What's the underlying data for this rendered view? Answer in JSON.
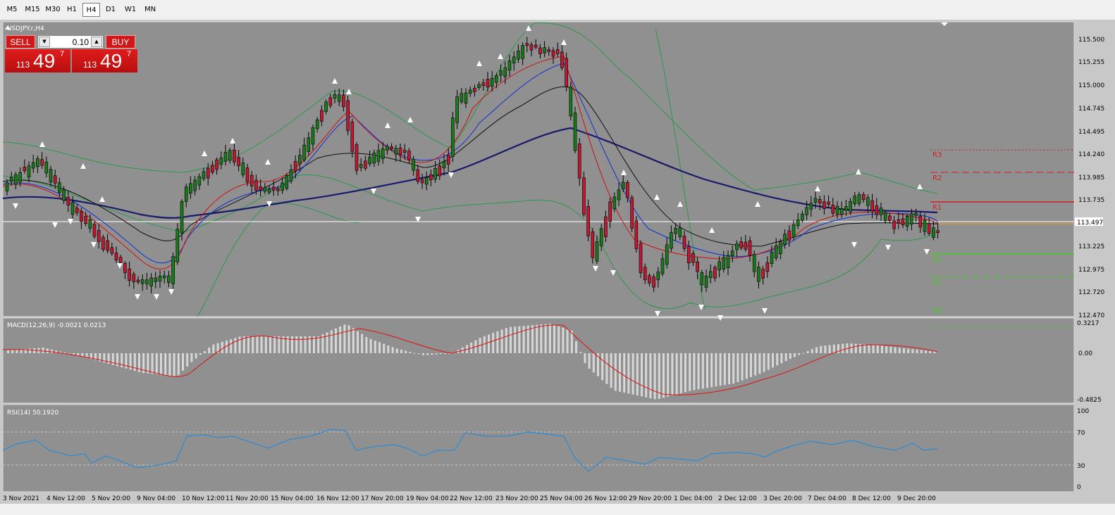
{
  "timeframes": [
    "M5",
    "M15",
    "M30",
    "H1",
    "H4",
    "D1",
    "W1",
    "MN"
  ],
  "active_timeframe": "H4",
  "chart": {
    "symbol_label": "USDJPY.r,H4",
    "current_price": "113.497",
    "price_ticks": [
      "115.500",
      "115.255",
      "115.000",
      "114.745",
      "114.495",
      "114.240",
      "113.985",
      "113.735",
      "113.225",
      "112.975",
      "112.720",
      "112.470"
    ],
    "date_ticks": [
      "3 Nov 2021",
      "4 Nov 12:00",
      "5 Nov 20:00",
      "9 Nov 04:00",
      "10 Nov 12:00",
      "11 Nov 20:00",
      "15 Nov 04:00",
      "16 Nov 12:00",
      "17 Nov 20:00",
      "19 Nov 04:00",
      "22 Nov 12:00",
      "23 Nov 20:00",
      "25 Nov 04:00",
      "26 Nov 12:00",
      "29 Nov 20:00",
      "1 Dec 04:00",
      "2 Dec 12:00",
      "3 Dec 20:00",
      "7 Dec 04:00",
      "8 Dec 12:00",
      "9 Dec 20:00"
    ],
    "pivots": {
      "R3": "R3",
      "R2": "R2",
      "R1": "R1",
      "S1": "S1",
      "S2": "S2",
      "S3": "S3"
    },
    "colors": {
      "bull": "#1a7a1a",
      "bear": "#c01830",
      "ma_red": "#d01010",
      "ma_blue": "#1030d0",
      "ma_black": "#101010",
      "ma_navy": "#1a1a6a",
      "bb": "#2a9a4a",
      "resist": "#d02020",
      "support": "#40d020"
    }
  },
  "trade": {
    "sell_label": "SELL",
    "buy_label": "BUY",
    "lot": "0.10",
    "bid_small": "113",
    "bid_big": "49",
    "bid_sup": "7",
    "ask_small": "113",
    "ask_big": "49",
    "ask_sup": "7"
  },
  "macd": {
    "label": "MACD(12,26,9) -0.0021 0.0213",
    "ticks": [
      "0.3217",
      "0.00",
      "-0.4825"
    ]
  },
  "rsi": {
    "label": "RSI(14) 50.1920",
    "ticks": [
      "100",
      "70",
      "30",
      "0"
    ]
  }
}
